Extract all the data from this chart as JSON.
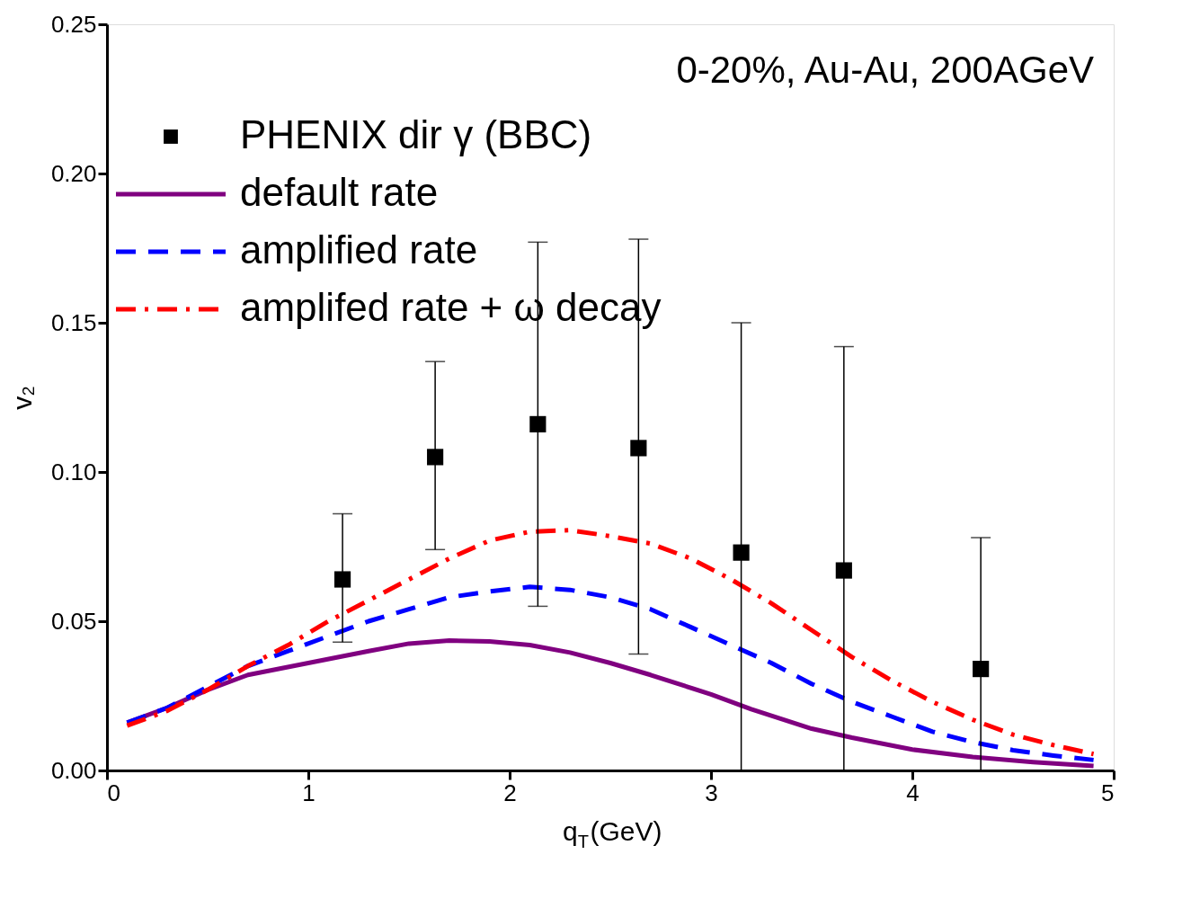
{
  "chart_data": {
    "type": "line",
    "xlabel": "q$_{T}$(GeV)",
    "ylabel": "v₂",
    "xlim": [
      0,
      5
    ],
    "xticks": [
      0,
      1,
      2,
      3,
      4,
      5
    ],
    "ylim": [
      0,
      0.25
    ],
    "yticks": [
      {
        "value": 0,
        "label": "0.00"
      },
      {
        "value": 0.05,
        "label": "0.05"
      },
      {
        "value": 0.1,
        "label": "0.10"
      },
      {
        "value": 0.15,
        "label": "0.15"
      },
      {
        "value": 0.2,
        "label": "0.20"
      },
      {
        "value": 0.25,
        "label": "0.25"
      }
    ],
    "annotations": [
      "0-20%, Au-Au, 200AGeV"
    ],
    "legend": "top left",
    "grid": false,
    "series": [
      {
        "name": "PHENIX dir γ (BBC)",
        "type": "scatter",
        "marker": "square",
        "color": "#000000",
        "x": [
          1.17,
          1.63,
          2.14,
          2.64,
          3.15,
          3.66,
          4.34
        ],
        "values": [
          0.064,
          0.105,
          0.116,
          0.108,
          0.073,
          0.067,
          0.034
        ],
        "errors": [
          [
            0.043,
            0.086
          ],
          [
            0.074,
            0.137
          ],
          [
            0.055,
            0.177
          ],
          [
            0.039,
            0.178
          ],
          [
            0.0,
            0.15
          ],
          [
            0.0,
            0.142
          ],
          [
            0.0,
            0.078
          ]
        ]
      },
      {
        "name": "default rate",
        "line_style": "solid",
        "color": "#800080",
        "x": [
          0.1,
          0.3,
          0.5,
          0.7,
          1.0,
          1.3,
          1.5,
          1.7,
          1.9,
          2.1,
          2.3,
          2.5,
          2.7,
          3.0,
          3.2,
          3.5,
          3.7,
          4.0,
          4.3,
          4.6,
          4.9
        ],
        "values": [
          0.016,
          0.021,
          0.027,
          0.032,
          0.036,
          0.04,
          0.0425,
          0.0435,
          0.0432,
          0.042,
          0.0395,
          0.036,
          0.032,
          0.0255,
          0.0205,
          0.014,
          0.011,
          0.007,
          0.0045,
          0.0028,
          0.0015
        ]
      },
      {
        "name": "amplified rate",
        "line_style": "dashed",
        "color": "#0000ff",
        "x": [
          0.1,
          0.3,
          0.5,
          0.7,
          0.9,
          1.1,
          1.3,
          1.5,
          1.7,
          1.9,
          2.1,
          2.3,
          2.5,
          2.7,
          2.9,
          3.1,
          3.3,
          3.5,
          3.7,
          3.9,
          4.1,
          4.3,
          4.5,
          4.7,
          4.9
        ],
        "values": [
          0.016,
          0.021,
          0.028,
          0.035,
          0.04,
          0.045,
          0.05,
          0.054,
          0.058,
          0.06,
          0.0615,
          0.0605,
          0.058,
          0.054,
          0.048,
          0.042,
          0.036,
          0.029,
          0.023,
          0.018,
          0.013,
          0.0095,
          0.0068,
          0.005,
          0.0035
        ]
      },
      {
        "name": "amplifed rate + ω decay",
        "line_style": "dashdot",
        "color": "#ff0000",
        "x": [
          0.1,
          0.3,
          0.5,
          0.7,
          0.9,
          1.1,
          1.3,
          1.5,
          1.7,
          1.9,
          2.1,
          2.3,
          2.5,
          2.7,
          2.9,
          3.1,
          3.3,
          3.5,
          3.7,
          3.9,
          4.1,
          4.3,
          4.5,
          4.7,
          4.9
        ],
        "values": [
          0.015,
          0.02,
          0.027,
          0.035,
          0.042,
          0.05,
          0.057,
          0.064,
          0.071,
          0.077,
          0.08,
          0.0805,
          0.0785,
          0.076,
          0.071,
          0.064,
          0.056,
          0.047,
          0.038,
          0.03,
          0.023,
          0.017,
          0.012,
          0.0085,
          0.0055
        ]
      }
    ]
  }
}
